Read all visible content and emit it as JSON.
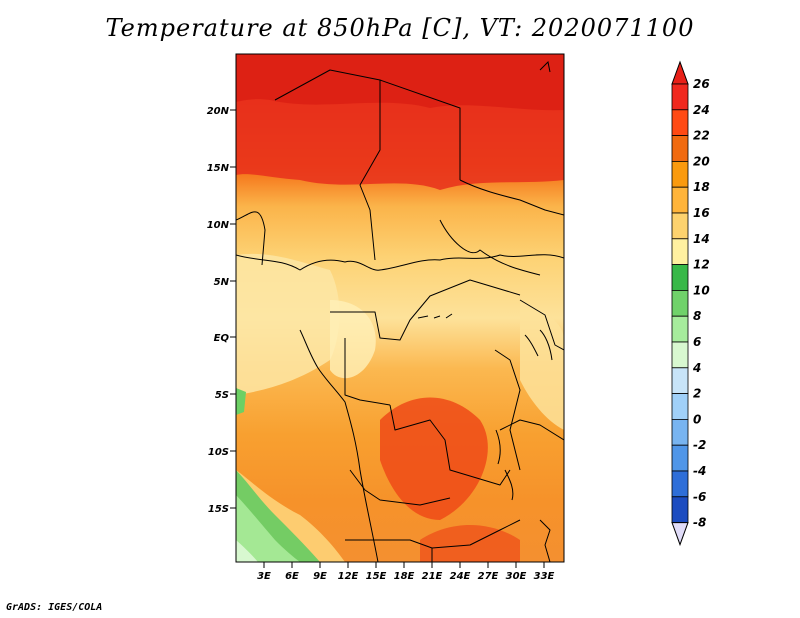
{
  "title": "Temperature at 850hPa [C], VT: 2020071100",
  "footer": "GrADS: IGES/COLA",
  "map": {
    "region": "Central Africa",
    "lat_labels": [
      "20N",
      "15N",
      "10N",
      "5N",
      "EQ",
      "5S",
      "10S",
      "15S"
    ],
    "lon_labels": [
      "3E",
      "6E",
      "9E",
      "12E",
      "15E",
      "18E",
      "21E",
      "24E",
      "27E",
      "30E",
      "33E"
    ]
  },
  "colorbar": {
    "labels": [
      "26",
      "24",
      "22",
      "20",
      "18",
      "16",
      "14",
      "12",
      "10",
      "8",
      "6",
      "4",
      "2",
      "0",
      "-2",
      "-4",
      "-6",
      "-8"
    ],
    "colors_top_to_bottom": [
      "#f0281e",
      "#ff4a14",
      "#f06a10",
      "#fa9a0e",
      "#ffb43a",
      "#fdd26e",
      "#fff0a0",
      "#38b848",
      "#70d26a",
      "#a6ec9c",
      "#d8f8d0",
      "#c8e4f8",
      "#a0d0f8",
      "#78b4f0",
      "#5096e8",
      "#2e6ed8",
      "#1c4cc0",
      "#0c2a9a",
      "#000c70"
    ],
    "top_triangle_color": "#e82018",
    "bottom_triangle_color": "#e0dcf8"
  }
}
